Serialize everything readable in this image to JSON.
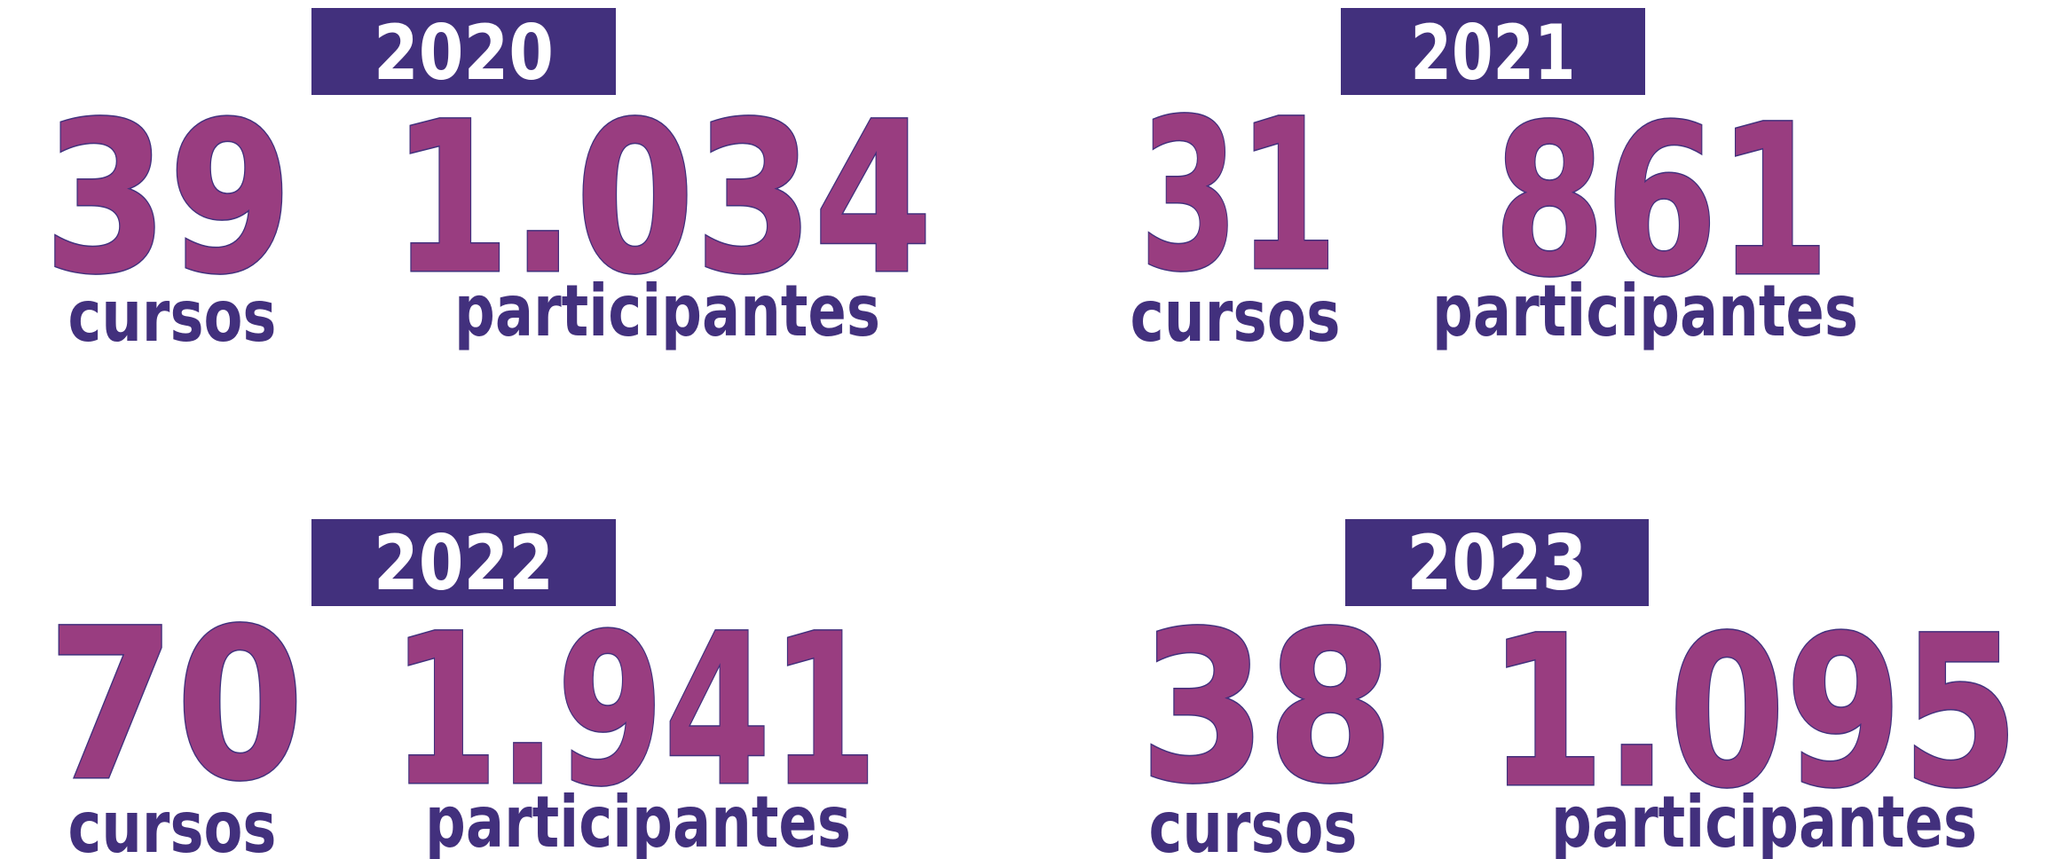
{
  "blocks": [
    {
      "year": "2020",
      "courses": "39",
      "courses_label": "cursos",
      "participants": "1.034",
      "participants_label": "participantes"
    },
    {
      "year": "2021",
      "courses": "31",
      "courses_label": "cursos",
      "participants": "861",
      "participants_label": "participantes"
    },
    {
      "year": "2022",
      "courses": "70",
      "courses_label": "cursos",
      "participants": "1.941",
      "participants_label": "participantes"
    },
    {
      "year": "2023",
      "courses": "38",
      "courses_label": "cursos",
      "participants": "1.095",
      "participants_label": "participantes"
    }
  ]
}
